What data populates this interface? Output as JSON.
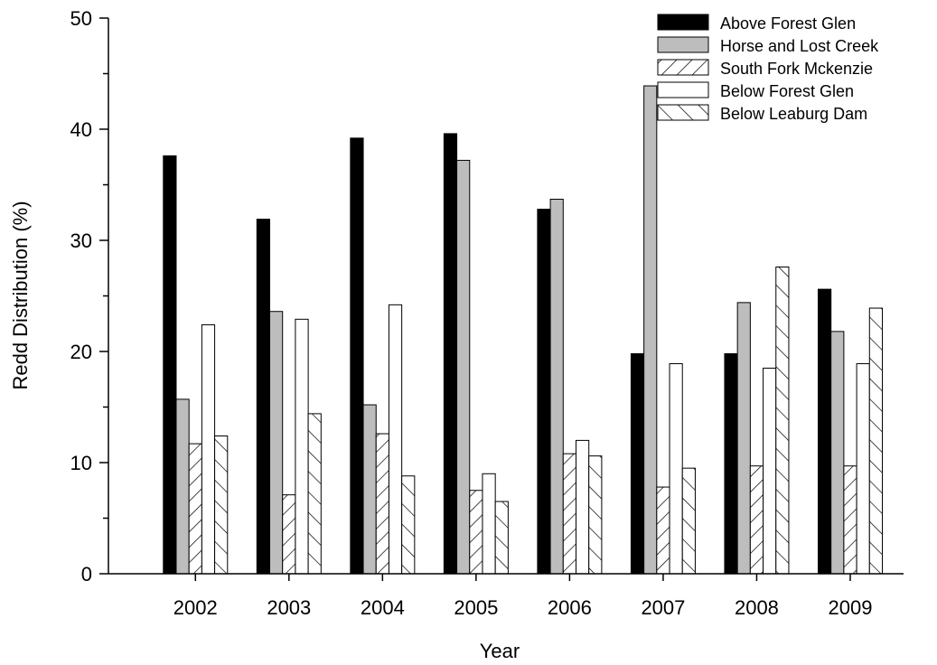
{
  "chart_data": {
    "type": "bar",
    "title": "",
    "xlabel": "Year",
    "ylabel": "Redd Distribution (%)",
    "ylim": [
      0,
      50
    ],
    "yticks": [
      0,
      10,
      20,
      30,
      40,
      50
    ],
    "grid": false,
    "legend_position": "top-right",
    "categories": [
      "2002",
      "2003",
      "2004",
      "2005",
      "2006",
      "2007",
      "2008",
      "2009"
    ],
    "series": [
      {
        "name": "Above Forest Glen",
        "fill": "solid-black",
        "values": [
          37.6,
          31.9,
          39.2,
          39.6,
          32.8,
          19.8,
          19.8,
          25.6
        ]
      },
      {
        "name": "Horse and Lost Creek",
        "fill": "solid-gray",
        "values": [
          15.7,
          23.6,
          15.2,
          37.2,
          33.7,
          43.9,
          24.4,
          21.8
        ]
      },
      {
        "name": "South Fork Mckenzie",
        "fill": "hatch-forward",
        "values": [
          11.7,
          7.1,
          12.6,
          7.5,
          10.8,
          7.8,
          9.7,
          9.7
        ]
      },
      {
        "name": "Below Forest Glen",
        "fill": "white",
        "values": [
          22.4,
          22.9,
          24.2,
          9.0,
          12.0,
          18.9,
          18.5,
          18.9
        ]
      },
      {
        "name": "Below Leaburg Dam",
        "fill": "hatch-backward",
        "values": [
          12.4,
          14.4,
          8.8,
          6.5,
          10.6,
          9.5,
          27.6,
          23.9
        ]
      }
    ]
  }
}
